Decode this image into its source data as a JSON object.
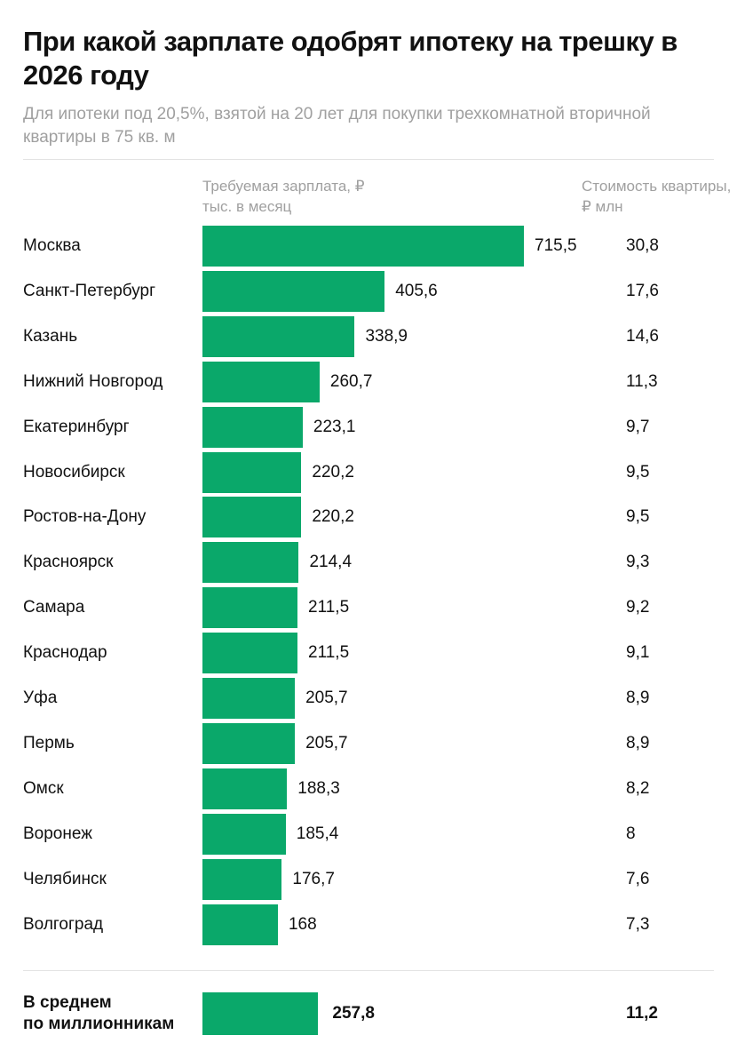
{
  "chart_data": {
    "type": "bar",
    "orientation": "horizontal",
    "title": "При какой зарплате одобрят ипотеку на трешку в 2026 году",
    "subtitle": "Для ипотеки под 20,5%, взятой на 20 лет для покупки трехкомнатной вторичной квартиры в 75 кв. м",
    "value_header": "Требуемая зарплата, ₽ тыс. в месяц",
    "price_header": "Стоимость квартиры, ₽ млн",
    "bar_color": "#0aa86a",
    "grid": false,
    "rows": [
      {
        "city": "Москва",
        "salary": "715,5",
        "price": "30,8",
        "value": 715.5
      },
      {
        "city": "Санкт-Петербург",
        "salary": "405,6",
        "price": "17,6",
        "value": 405.6
      },
      {
        "city": "Казань",
        "salary": "338,9",
        "price": "14,6",
        "value": 338.9
      },
      {
        "city": "Нижний Новгород",
        "salary": "260,7",
        "price": "11,3",
        "value": 260.7
      },
      {
        "city": "Екатеринбург",
        "salary": "223,1",
        "price": "9,7",
        "value": 223.1
      },
      {
        "city": "Новосибирск",
        "salary": "220,2",
        "price": "9,5",
        "value": 220.2
      },
      {
        "city": "Ростов-на-Дону",
        "salary": "220,2",
        "price": "9,5",
        "value": 220.2
      },
      {
        "city": "Красноярск",
        "salary": "214,4",
        "price": "9,3",
        "value": 214.4
      },
      {
        "city": "Самара",
        "salary": "211,5",
        "price": "9,2",
        "value": 211.5
      },
      {
        "city": "Краснодар",
        "salary": "211,5",
        "price": "9,1",
        "value": 211.5
      },
      {
        "city": "Уфа",
        "salary": "205,7",
        "price": "8,9",
        "value": 205.7
      },
      {
        "city": "Пермь",
        "salary": "205,7",
        "price": "8,9",
        "value": 205.7
      },
      {
        "city": "Омск",
        "salary": "188,3",
        "price": "8,2",
        "value": 188.3
      },
      {
        "city": "Воронеж",
        "salary": "185,4",
        "price": "8",
        "value": 185.4
      },
      {
        "city": "Челябинск",
        "salary": "176,7",
        "price": "7,6",
        "value": 176.7
      },
      {
        "city": "Волгоград",
        "salary": "168",
        "price": "7,3",
        "value": 168
      }
    ],
    "average": {
      "label_line1": "В среднем",
      "label_line2": "по миллионникам",
      "salary": "257,8",
      "price": "11,2",
      "value": 257.8
    }
  }
}
